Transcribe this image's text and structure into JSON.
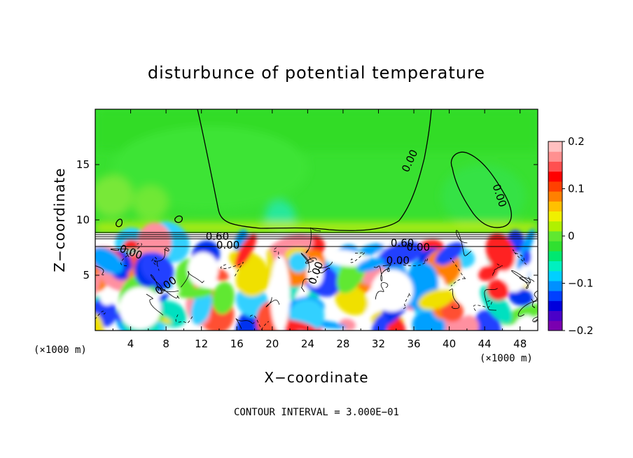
{
  "chart_data": {
    "type": "heatmap",
    "title": "disturbunce of potential temperature",
    "xlabel": "X−coordinate",
    "ylabel": "Z−coordinate",
    "x_unit_label": "(×1000 m)",
    "x_unit_label_right": "(×1000 m)",
    "xlim": [
      0,
      50
    ],
    "ylim": [
      0,
      20
    ],
    "x_ticks": [
      4,
      8,
      12,
      16,
      20,
      24,
      28,
      32,
      36,
      40,
      44,
      48
    ],
    "x_tick_labels": [
      "4",
      "8",
      "12",
      "16",
      "20",
      "24",
      "28",
      "32",
      "36",
      "40",
      "44",
      "48"
    ],
    "y_ticks": [
      5,
      10,
      15
    ],
    "y_tick_labels": [
      "5",
      "10",
      "15"
    ],
    "colorbar": {
      "range": [
        -0.2,
        0.2
      ],
      "tick_values": [
        0.2,
        0.1,
        0,
        -0.1,
        -0.2
      ],
      "tick_labels": [
        "0.2",
        "0.1",
        "0",
        "−0.1",
        "−0.2"
      ],
      "colors": [
        "#7a00b0",
        "#4a00c8",
        "#0000dc",
        "#0040ff",
        "#0090ff",
        "#00d0ff",
        "#00f0c0",
        "#00e870",
        "#30e030",
        "#60e830",
        "#b0f000",
        "#f0f000",
        "#ffc000",
        "#ff8000",
        "#ff4000",
        "#ff0000",
        "#ff5050",
        "#ff9090",
        "#ffc0c0"
      ]
    },
    "contour_labels": [
      {
        "text": "0.00",
        "x": 35.9,
        "y": 15.2,
        "rotate": -65
      },
      {
        "text": "0.00",
        "x": 45.3,
        "y": 12.1,
        "rotate": 72
      },
      {
        "text": "0.00",
        "x": 3.9,
        "y": 6.8,
        "rotate": 20
      },
      {
        "text": "0.60",
        "x": 13.8,
        "y": 8.2,
        "rotate": 0
      },
      {
        "text": "0.60",
        "x": 34.7,
        "y": 7.6,
        "rotate": 0
      },
      {
        "text": "0.00",
        "x": 36.5,
        "y": 7.2,
        "rotate": 0
      },
      {
        "text": "0.00",
        "x": 34.2,
        "y": 6.0,
        "rotate": 0
      },
      {
        "text": "0.00",
        "x": 8.2,
        "y": 3.8,
        "rotate": -35
      },
      {
        "text": "0.00",
        "x": 25.3,
        "y": 5.1,
        "rotate": -70
      },
      {
        "text": "0.00",
        "x": 15.0,
        "y": 7.4,
        "rotate": 0
      }
    ],
    "grid": false,
    "legend": "colorbar-right",
    "footnote": "CONTOUR INTERVAL = 3.000E−01"
  }
}
